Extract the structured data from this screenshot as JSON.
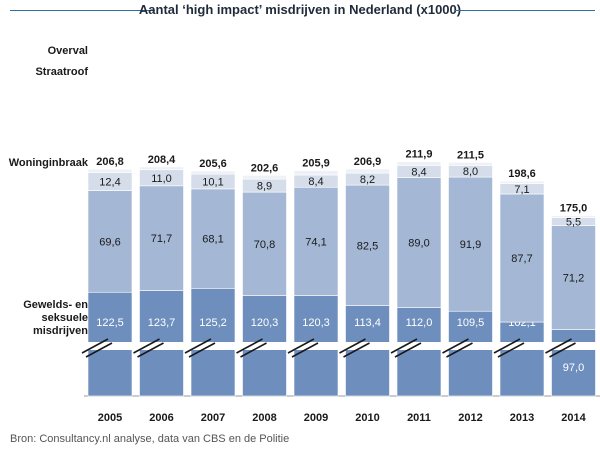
{
  "chart_data": {
    "type": "bar",
    "stacked": true,
    "title": "Aantal ‘high impact’ misdrijven in Nederland (x1000)",
    "categories": [
      "2005",
      "2006",
      "2007",
      "2008",
      "2009",
      "2010",
      "2011",
      "2012",
      "2013",
      "2014"
    ],
    "totals": [
      "206,8",
      "208,4",
      "205,6",
      "202,6",
      "205,9",
      "206,9",
      "211,9",
      "211,5",
      "198,6",
      "175,0"
    ],
    "series": [
      {
        "name": "Gewelds- en seksuele misdrijven",
        "color": "#6e8fbd",
        "text_color": "#ffffff",
        "values": [
          122.5,
          123.7,
          125.2,
          120.3,
          120.3,
          113.4,
          112.0,
          109.5,
          102.1,
          97.0
        ],
        "labels": [
          "122,5",
          "123,7",
          "125,2",
          "120,3",
          "120,3",
          "113,4",
          "112,0",
          "109,5",
          "102,1",
          "97,0"
        ]
      },
      {
        "name": "Woninginbraak",
        "color": "#a4b7d5",
        "text_color": "#1a1a1a",
        "values": [
          69.6,
          71.7,
          68.1,
          70.8,
          74.1,
          82.5,
          89.0,
          91.9,
          87.7,
          71.2
        ],
        "labels": [
          "69,6",
          "71,7",
          "68,1",
          "70,8",
          "74,1",
          "82,5",
          "89,0",
          "91,9",
          "87,7",
          "71,2"
        ]
      },
      {
        "name": "Straatroof",
        "color": "#d4dde9",
        "text_color": "#1a1a1a",
        "values": [
          12.4,
          11.0,
          10.1,
          8.9,
          8.4,
          8.2,
          8.4,
          8.0,
          7.1,
          5.5
        ],
        "labels": [
          "12,4",
          "11,0",
          "10,1",
          "8,9",
          "8,4",
          "8,2",
          "8,4",
          "8,0",
          "7,1",
          "5,5"
        ]
      },
      {
        "name": "Overval",
        "color": "#eef2f7",
        "text_color": "#1a1a1a",
        "values": [
          2.3,
          2.0,
          2.2,
          2.6,
          3.1,
          2.8,
          2.5,
          2.1,
          1.7,
          1.3
        ],
        "labels": null
      }
    ],
    "y_axis_break": true,
    "xlabel": "",
    "ylabel": ""
  },
  "source": "Bron: Consultancy.nl analyse, data van CBS en de Politie"
}
